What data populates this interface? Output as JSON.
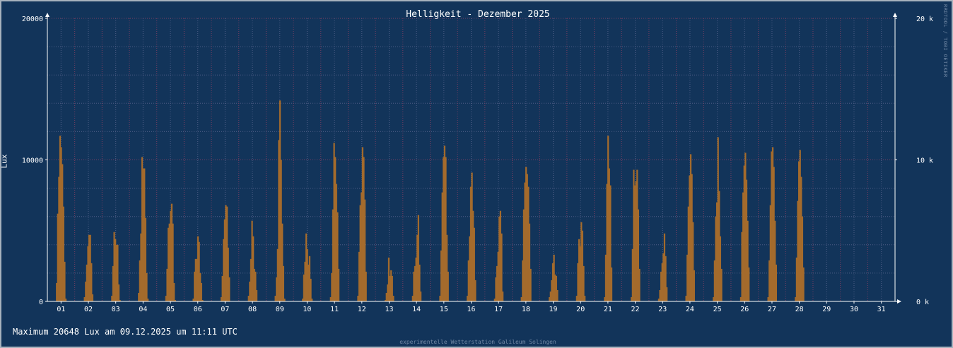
{
  "chart_data": {
    "type": "bar",
    "title": "Helligkeit - Dezember 2025",
    "ylabel": "Lux",
    "ylim": [
      0,
      20000
    ],
    "left_ticks": [
      "0",
      "10000",
      "20000"
    ],
    "right_ticks": [
      "0 k",
      "10 k",
      "20 k"
    ],
    "grid": true,
    "days": [
      "01",
      "02",
      "03",
      "04",
      "05",
      "06",
      "07",
      "08",
      "09",
      "10",
      "11",
      "12",
      "13",
      "14",
      "15",
      "16",
      "17",
      "18",
      "19",
      "20",
      "21",
      "22",
      "23",
      "24",
      "25",
      "26",
      "27",
      "28",
      "29",
      "30",
      "31"
    ],
    "daily_profiles": [
      [
        1300,
        6200,
        8800,
        11700,
        10900,
        9700,
        6700,
        2800,
        200
      ],
      [
        300,
        1400,
        2600,
        3900,
        4700,
        4700,
        2700,
        500
      ],
      [
        400,
        2500,
        4900,
        4400,
        4000,
        4000,
        1200,
        100
      ],
      [
        600,
        2900,
        4800,
        10200,
        9400,
        9400,
        5900,
        2000,
        200
      ],
      [
        400,
        2300,
        5200,
        5500,
        6400,
        6900,
        5500,
        1300,
        100
      ],
      [
        200,
        2100,
        3000,
        3000,
        4600,
        4200,
        2000,
        1300,
        100
      ],
      [
        300,
        1800,
        4400,
        5800,
        6800,
        6700,
        3800,
        1700
      ],
      [
        400,
        1400,
        3000,
        5700,
        4600,
        2300,
        2100,
        800
      ],
      [
        400,
        1700,
        3700,
        11400,
        14200,
        10000,
        5500,
        2500,
        200
      ],
      [
        200,
        1900,
        2800,
        4800,
        3700,
        2600,
        3200,
        1600,
        200
      ],
      [
        300,
        2000,
        6500,
        11200,
        10200,
        8300,
        6300,
        2300
      ],
      [
        400,
        3500,
        6800,
        7700,
        10900,
        10200,
        7200,
        2100
      ],
      [
        100,
        600,
        1200,
        3100,
        1800,
        2200,
        1800,
        400
      ],
      [
        400,
        2100,
        2500,
        3100,
        4700,
        6100,
        2600,
        700
      ],
      [
        400,
        3600,
        7700,
        10200,
        11000,
        10200,
        4700,
        2100
      ],
      [
        400,
        2900,
        4600,
        8100,
        9100,
        6400,
        5200,
        1500
      ],
      [
        200,
        1700,
        2500,
        3500,
        6000,
        6400,
        4800,
        700
      ],
      [
        300,
        2900,
        6500,
        8400,
        9500,
        9000,
        8100,
        5500,
        2300
      ],
      [
        300,
        700,
        1500,
        2700,
        3300,
        1900,
        1800,
        800
      ],
      [
        400,
        2700,
        4400,
        3900,
        5600,
        5000,
        2500,
        400
      ],
      [
        300,
        3300,
        8300,
        11700,
        9400,
        8200,
        2400
      ],
      [
        300,
        3700,
        9300,
        8200,
        8500,
        9300,
        6500,
        2300
      ],
      [
        200,
        800,
        2100,
        2700,
        3400,
        4800,
        3200,
        1000
      ],
      [
        400,
        3300,
        6700,
        8900,
        10400,
        9000,
        5600,
        2200
      ],
      [
        300,
        2900,
        6000,
        7000,
        11600,
        7800,
        4600,
        2300
      ],
      [
        300,
        4900,
        7700,
        9600,
        10500,
        8600,
        5700,
        2400
      ],
      [
        300,
        2900,
        6800,
        10600,
        10900,
        9500,
        5700,
        2600
      ],
      [
        300,
        3100,
        7100,
        9900,
        10700,
        8800,
        6000,
        2400
      ]
    ]
  },
  "footer_text": "Maximum 20648 Lux am 09.12.2025 um 11:11 UTC",
  "credit_text": "experimentelle Wetterstation Galileum Solingen",
  "watermark_text": "RRDTOOL / TOBI OETIKER",
  "colors": {
    "background": "#12345a",
    "bar": "#a46b2c",
    "grid_major": "#7a3e62",
    "grid_minor": "#4e5d86",
    "axis": "#ffffff"
  }
}
